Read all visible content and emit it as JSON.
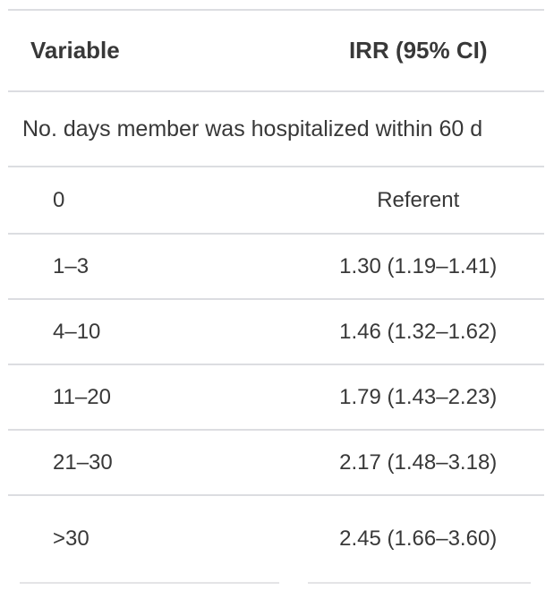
{
  "table": {
    "columns": [
      {
        "label": "Variable"
      },
      {
        "label": "IRR (95% CI)"
      }
    ],
    "group_header": "No. days member was hospitalized within 60 d",
    "rows": [
      {
        "variable": "0",
        "irr": "Referent"
      },
      {
        "variable": "1–3",
        "irr": "1.30 (1.19–1.41)"
      },
      {
        "variable": "4–10",
        "irr": "1.46 (1.32–1.62)"
      },
      {
        "variable": "11–20",
        "irr": "1.79 (1.43–2.23)"
      },
      {
        "variable": "21–30",
        "irr": "2.17 (1.48–3.18)"
      },
      {
        "variable": ">30",
        "irr": "2.45 (1.66–3.60)"
      }
    ],
    "colors": {
      "text": "#383838",
      "border": "#dcdde1"
    }
  },
  "chart_data": {
    "type": "table",
    "title": "",
    "columns": [
      "Variable",
      "IRR (95% CI)"
    ],
    "group": "No. days member was hospitalized within 60 d",
    "rows": [
      [
        "0",
        "Referent"
      ],
      [
        "1–3",
        "1.30 (1.19–1.41)"
      ],
      [
        "4–10",
        "1.46 (1.32–1.62)"
      ],
      [
        "11–20",
        "1.79 (1.43–2.23)"
      ],
      [
        "21–30",
        "2.17 (1.48–3.18)"
      ],
      [
        ">30",
        "2.45 (1.66–3.60)"
      ]
    ],
    "irr_values": [
      1.3,
      1.46,
      1.79,
      2.17,
      2.45
    ],
    "ci_low": [
      1.19,
      1.32,
      1.43,
      1.48,
      1.66
    ],
    "ci_high": [
      1.41,
      1.62,
      2.23,
      3.18,
      3.6
    ]
  }
}
